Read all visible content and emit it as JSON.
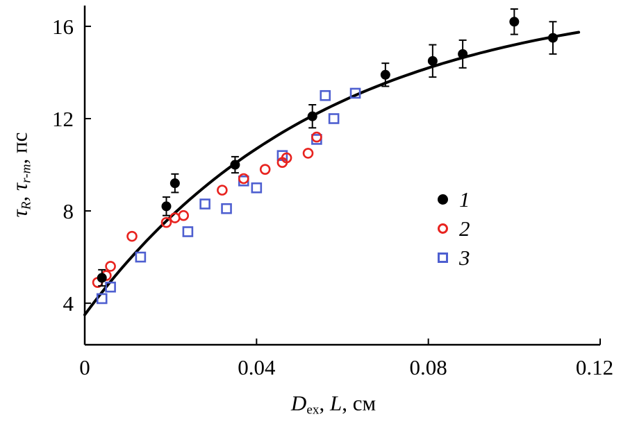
{
  "figure": {
    "background": "#ffffff",
    "axis_color": "#000000"
  },
  "axes": {
    "ylabel": {
      "tau1": "τ",
      "sub1": "R",
      "sep": ", ",
      "tau2": "τ",
      "sub2": "r-m",
      "unit": ", пс"
    },
    "xlabel": {
      "d": "D",
      "dsub": "ex",
      "sep1": ", ",
      "l": "L",
      "unit": ", см"
    }
  },
  "legend": {
    "items": [
      {
        "label": "1",
        "marker": "filled-circle",
        "color": "#000000"
      },
      {
        "label": "2",
        "marker": "open-circle",
        "color": "#e8231f"
      },
      {
        "label": "3",
        "marker": "open-square",
        "color": "#4e5fd0"
      }
    ]
  },
  "chart_data": {
    "type": "scatter",
    "title": "",
    "x_axis": {
      "label": "D_ex, L, см",
      "range": [
        0,
        0.12
      ],
      "ticks": [
        0,
        0.04,
        0.08,
        0.12
      ],
      "tick_labels": [
        "0",
        "0.04",
        "0.08",
        "0.12"
      ]
    },
    "y_axis": {
      "label": "τ_R, τ_r-m, пс",
      "range": [
        2.2,
        16.9
      ],
      "ticks": [
        4,
        8,
        12,
        16
      ],
      "tick_labels": [
        "4",
        "8",
        "12",
        "16"
      ]
    },
    "grid": false,
    "legend_position": "middle-right",
    "series": [
      {
        "name": "1",
        "marker": "filled-circle",
        "color": "#000000",
        "has_error_bars": true,
        "points": [
          [
            0.004,
            5.1,
            0.35
          ],
          [
            0.019,
            8.2,
            0.4
          ],
          [
            0.021,
            9.2,
            0.4
          ],
          [
            0.035,
            10.0,
            0.35
          ],
          [
            0.053,
            12.1,
            0.5
          ],
          [
            0.07,
            13.9,
            0.5
          ],
          [
            0.081,
            14.5,
            0.7
          ],
          [
            0.088,
            14.8,
            0.6
          ],
          [
            0.1,
            16.2,
            0.55
          ],
          [
            0.109,
            15.5,
            0.7
          ]
        ]
      },
      {
        "name": "2",
        "marker": "open-circle",
        "color": "#e8231f",
        "has_error_bars": false,
        "points": [
          [
            0.003,
            4.9
          ],
          [
            0.005,
            5.2
          ],
          [
            0.006,
            5.6
          ],
          [
            0.011,
            6.9
          ],
          [
            0.019,
            7.5
          ],
          [
            0.021,
            7.7
          ],
          [
            0.023,
            7.8
          ],
          [
            0.032,
            8.9
          ],
          [
            0.037,
            9.4
          ],
          [
            0.042,
            9.8
          ],
          [
            0.046,
            10.1
          ],
          [
            0.047,
            10.3
          ],
          [
            0.052,
            10.5
          ],
          [
            0.054,
            11.2
          ]
        ]
      },
      {
        "name": "3",
        "marker": "open-square",
        "color": "#4e5fd0",
        "has_error_bars": false,
        "points": [
          [
            0.004,
            4.2
          ],
          [
            0.006,
            4.7
          ],
          [
            0.013,
            6.0
          ],
          [
            0.024,
            7.1
          ],
          [
            0.028,
            8.3
          ],
          [
            0.033,
            8.1
          ],
          [
            0.037,
            9.3
          ],
          [
            0.04,
            9.0
          ],
          [
            0.046,
            10.4
          ],
          [
            0.054,
            11.1
          ],
          [
            0.056,
            13.0
          ],
          [
            0.058,
            12.0
          ],
          [
            0.063,
            13.1
          ]
        ]
      }
    ],
    "fit_curve": {
      "description": "y = a - b*exp(-x/c)",
      "a": 17.5,
      "b": 14.0,
      "c": 0.0554,
      "x_range": [
        0,
        0.115
      ],
      "color": "#000000"
    }
  }
}
